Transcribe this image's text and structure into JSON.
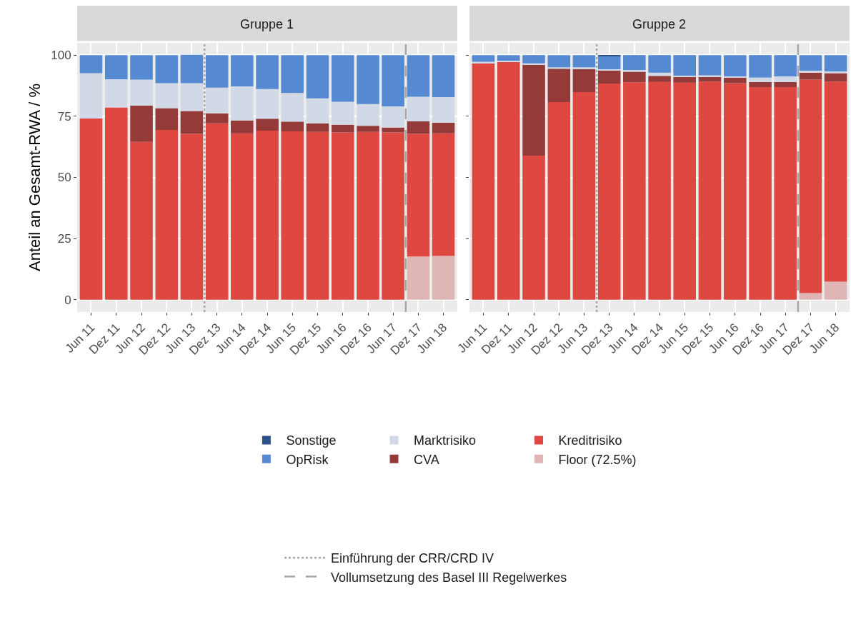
{
  "chart_data": [
    {
      "type": "bar",
      "title": "Gruppe 1",
      "ylabel": "Anteil an Gesamt-RWA / %",
      "stacked": true,
      "legend": "bottom",
      "grid": true,
      "x": [
        "2011-06",
        "2011-12",
        "2012-06",
        "2012-12",
        "2013-06",
        "2013-12",
        "2014-06",
        "2014-12",
        "2015-06",
        "2015-12",
        "2016-06",
        "2016-12",
        "2017-06",
        "2017-12",
        "2018-06"
      ],
      "xlim": [
        "2011-02-20",
        "2018-09-10"
      ],
      "xticks": [
        {
          "value": "2011-06",
          "label": "Jun 11"
        },
        {
          "value": "2011-12",
          "label": "Dez 11"
        },
        {
          "value": "2012-06",
          "label": "Jun 12"
        },
        {
          "value": "2012-12",
          "label": "Dez 12"
        },
        {
          "value": "2013-06",
          "label": "Jun 13"
        },
        {
          "value": "2013-12",
          "label": "Dez 13"
        },
        {
          "value": "2014-06",
          "label": "Jun 14"
        },
        {
          "value": "2014-12",
          "label": "Dez 14"
        },
        {
          "value": "2015-06",
          "label": "Jun 15"
        },
        {
          "value": "2015-12",
          "label": "Dez 15"
        },
        {
          "value": "2016-06",
          "label": "Jun 16"
        },
        {
          "value": "2016-12",
          "label": "Dez 16"
        },
        {
          "value": "2017-06",
          "label": "Jun 17"
        },
        {
          "value": "2017-12",
          "label": "Dez 17"
        },
        {
          "value": "2018-06",
          "label": "Jun 18"
        }
      ],
      "ylim": [
        -5,
        105
      ],
      "yticks": [
        0,
        25,
        50,
        75,
        100
      ],
      "series": [
        {
          "name": "Floor (72.5%)",
          "color": "#e0b5b5",
          "values": [
            0,
            0,
            0,
            0,
            0,
            0,
            0,
            0,
            0,
            0,
            0,
            0,
            0,
            17.7,
            17.9
          ]
        },
        {
          "name": "Kreditrisiko",
          "color": "#df4841",
          "values": [
            74.1,
            78.6,
            64.5,
            69.4,
            67.9,
            72.1,
            68.0,
            69.1,
            68.8,
            68.6,
            68.4,
            68.6,
            68.4,
            50.1,
            50.1
          ]
        },
        {
          "name": "CVA",
          "color": "#943a38",
          "values": [
            0,
            0,
            14.8,
            8.9,
            9.2,
            4.1,
            5.3,
            4.9,
            4.0,
            3.5,
            3.1,
            2.5,
            2.0,
            5.1,
            4.3
          ]
        },
        {
          "name": "Marktrisiko",
          "color": "#d2d9e6",
          "values": [
            18.5,
            11.5,
            10.7,
            10.2,
            11.4,
            10.5,
            13.9,
            12.1,
            11.7,
            10.2,
            9.4,
            8.9,
            8.6,
            10.1,
            10.5
          ]
        },
        {
          "name": "OpRisk",
          "color": "#558ad2",
          "values": [
            7.4,
            9.9,
            10.0,
            11.5,
            11.6,
            13.3,
            12.8,
            13.9,
            15.5,
            17.7,
            19.1,
            20.0,
            21.0,
            17.0,
            17.2
          ]
        },
        {
          "name": "Sonstige",
          "color": "#2a5288",
          "values": [
            0,
            0,
            0,
            0,
            0,
            0,
            0,
            0,
            0,
            0,
            0,
            0,
            0,
            0,
            0
          ]
        }
      ],
      "ref_lines": [
        {
          "axis": "x",
          "value": "2013-09",
          "label": "Einführung der CRR/CRD IV",
          "color": "#a6a6a6",
          "line_style": "dotted"
        },
        {
          "axis": "x",
          "value": "2017-09",
          "label": "Vollumsetzung des Basel III Regelwerkes",
          "color": "#a6a6a6",
          "line_style": "dashed"
        }
      ]
    },
    {
      "type": "bar",
      "title": "Gruppe 2",
      "stacked": true,
      "grid": true,
      "tick_labels": "x",
      "x": [
        "2011-06",
        "2011-12",
        "2012-06",
        "2012-12",
        "2013-06",
        "2013-12",
        "2014-06",
        "2014-12",
        "2015-06",
        "2015-12",
        "2016-06",
        "2016-12",
        "2017-06",
        "2017-12",
        "2018-06"
      ],
      "xlim": [
        "2011-02-20",
        "2018-09-10"
      ],
      "xticks": [
        {
          "value": "2011-06",
          "label": "Jun 11"
        },
        {
          "value": "2011-12",
          "label": "Dez 11"
        },
        {
          "value": "2012-06",
          "label": "Jun 12"
        },
        {
          "value": "2012-12",
          "label": "Dez 12"
        },
        {
          "value": "2013-06",
          "label": "Jun 13"
        },
        {
          "value": "2013-12",
          "label": "Dez 13"
        },
        {
          "value": "2014-06",
          "label": "Jun 14"
        },
        {
          "value": "2014-12",
          "label": "Dez 14"
        },
        {
          "value": "2015-06",
          "label": "Jun 15"
        },
        {
          "value": "2015-12",
          "label": "Dez 15"
        },
        {
          "value": "2016-06",
          "label": "Jun 16"
        },
        {
          "value": "2016-12",
          "label": "Dez 16"
        },
        {
          "value": "2017-06",
          "label": "Jun 17"
        },
        {
          "value": "2017-12",
          "label": "Dez 17"
        },
        {
          "value": "2018-06",
          "label": "Jun 18"
        }
      ],
      "ylim": [
        -5,
        105
      ],
      "yticks": [
        0,
        25,
        50,
        75,
        100
      ],
      "series": [
        {
          "color": "#e0b5b5",
          "values": [
            0,
            0,
            0,
            0,
            0,
            0,
            0,
            0,
            0,
            0,
            0,
            0,
            0,
            2.7,
            7.4
          ]
        },
        {
          "color": "#df4841",
          "values": [
            96.6,
            97.3,
            58.9,
            80.8,
            84.9,
            88.4,
            88.9,
            89.0,
            88.7,
            89.1,
            88.5,
            86.9,
            86.9,
            87.3,
            81.8
          ]
        },
        {
          "color": "#943a38",
          "values": [
            0,
            0,
            37.2,
            13.6,
            9.4,
            5.2,
            4.3,
            2.5,
            2.4,
            2.1,
            2.3,
            2.1,
            2.1,
            2.8,
            3.4
          ]
        },
        {
          "color": "#d2d9e6",
          "values": [
            0.7,
            0.4,
            0.5,
            0.6,
            0.7,
            0.6,
            0.7,
            1.3,
            0.5,
            0.5,
            0.5,
            1.8,
            2.3,
            0.8,
            0.7
          ]
        },
        {
          "color": "#558ad2",
          "values": [
            2.7,
            2.3,
            3.4,
            5.0,
            5.0,
            5.5,
            6.1,
            7.2,
            8.4,
            8.3,
            8.7,
            9.2,
            8.7,
            6.4,
            6.7
          ]
        },
        {
          "color": "#2a5288",
          "values": [
            0,
            0,
            0,
            0,
            0,
            0.3,
            0,
            0,
            0,
            0,
            0,
            0,
            0,
            0,
            0
          ]
        }
      ],
      "ref_lines": [
        {
          "axis": "x",
          "value": "2013-09",
          "color": "#a6a6a6",
          "line_style": "dotted"
        },
        {
          "axis": "x",
          "value": "2017-09",
          "color": "#a6a6a6",
          "line_style": "dashed"
        }
      ]
    }
  ]
}
